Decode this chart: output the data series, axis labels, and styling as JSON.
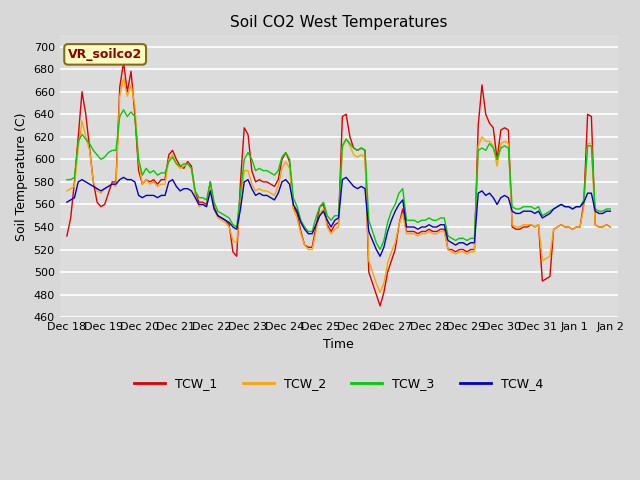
{
  "title": "Soil CO2 West Temperatures",
  "xlabel": "Time",
  "ylabel": "Soil Temperature (C)",
  "ylim": [
    460,
    710
  ],
  "yticks": [
    460,
    480,
    500,
    520,
    540,
    560,
    580,
    600,
    620,
    640,
    660,
    680,
    700
  ],
  "annotation_text": "VR_soilco2",
  "annotation_color": "#8B0000",
  "annotation_bg": "#FFFFC0",
  "colors": {
    "TCW_1": "#DD0000",
    "TCW_2": "#FFA500",
    "TCW_3": "#00CC00",
    "TCW_4": "#0000CC"
  },
  "bg_color": "#DCDCDC",
  "grid_color": "#FFFFFF",
  "fig_bg": "#D8D8D8",
  "tick_labels": [
    "Dec 18",
    "Dec 19",
    "Dec 20",
    "Dec 21",
    "Dec 22",
    "Dec 23",
    "Dec 24",
    "Dec 25",
    "Dec 26",
    "Dec 27",
    "Dec 28",
    "Dec 29",
    "Dec 30",
    "Dec 31",
    "Jan 1",
    "Jan 2"
  ],
  "TCW_1": [
    532,
    548,
    580,
    620,
    660,
    640,
    610,
    580,
    562,
    558,
    560,
    570,
    580,
    580,
    664,
    686,
    660,
    678,
    640,
    590,
    578,
    582,
    580,
    582,
    578,
    582,
    582,
    604,
    608,
    600,
    594,
    592,
    598,
    594,
    570,
    562,
    562,
    560,
    580,
    558,
    550,
    548,
    546,
    542,
    518,
    514,
    580,
    628,
    622,
    590,
    580,
    582,
    580,
    580,
    578,
    576,
    582,
    600,
    606,
    598,
    558,
    552,
    536,
    524,
    522,
    522,
    540,
    558,
    560,
    542,
    536,
    542,
    544,
    638,
    640,
    620,
    610,
    608,
    610,
    608,
    500,
    490,
    480,
    470,
    482,
    500,
    510,
    520,
    542,
    556,
    536,
    536,
    536,
    534,
    536,
    536,
    538,
    536,
    536,
    538,
    538,
    520,
    520,
    518,
    520,
    520,
    518,
    520,
    520,
    630,
    666,
    640,
    632,
    628,
    600,
    626,
    628,
    626,
    540,
    538,
    538,
    540,
    540,
    542,
    540,
    542,
    492,
    494,
    496,
    538,
    540,
    542,
    540,
    540,
    538,
    540,
    540,
    562,
    640,
    638,
    542,
    540,
    540,
    542,
    540
  ],
  "TCW_2": [
    572,
    574,
    576,
    610,
    634,
    620,
    608,
    580,
    572,
    570,
    574,
    576,
    578,
    576,
    656,
    672,
    656,
    666,
    648,
    598,
    578,
    582,
    578,
    580,
    576,
    578,
    578,
    600,
    604,
    596,
    592,
    594,
    596,
    592,
    568,
    558,
    560,
    558,
    576,
    556,
    548,
    546,
    544,
    540,
    528,
    526,
    562,
    590,
    590,
    578,
    572,
    574,
    572,
    572,
    570,
    568,
    576,
    592,
    598,
    592,
    556,
    548,
    534,
    524,
    520,
    520,
    536,
    552,
    556,
    540,
    534,
    538,
    540,
    610,
    618,
    612,
    604,
    602,
    604,
    602,
    510,
    500,
    490,
    482,
    490,
    508,
    518,
    526,
    542,
    552,
    534,
    534,
    534,
    532,
    534,
    534,
    536,
    534,
    534,
    536,
    536,
    520,
    518,
    516,
    518,
    518,
    516,
    518,
    518,
    612,
    620,
    616,
    616,
    612,
    594,
    614,
    616,
    614,
    542,
    540,
    540,
    542,
    542,
    542,
    540,
    542,
    510,
    512,
    514,
    538,
    540,
    542,
    540,
    540,
    538,
    540,
    540,
    558,
    614,
    614,
    542,
    540,
    540,
    542,
    540
  ],
  "TCW_3": [
    582,
    582,
    584,
    616,
    622,
    618,
    614,
    608,
    604,
    600,
    602,
    606,
    608,
    608,
    638,
    644,
    638,
    642,
    638,
    600,
    586,
    592,
    588,
    590,
    586,
    588,
    588,
    598,
    602,
    596,
    594,
    596,
    596,
    592,
    572,
    566,
    566,
    564,
    580,
    562,
    554,
    552,
    550,
    548,
    542,
    540,
    570,
    600,
    606,
    600,
    590,
    592,
    590,
    590,
    588,
    586,
    590,
    602,
    606,
    600,
    566,
    558,
    546,
    540,
    536,
    536,
    548,
    558,
    562,
    550,
    546,
    550,
    550,
    612,
    618,
    614,
    610,
    608,
    610,
    608,
    546,
    536,
    526,
    520,
    528,
    544,
    554,
    560,
    570,
    574,
    546,
    546,
    546,
    544,
    546,
    546,
    548,
    546,
    546,
    548,
    548,
    532,
    530,
    528,
    530,
    530,
    528,
    530,
    530,
    608,
    610,
    608,
    614,
    610,
    600,
    610,
    612,
    610,
    558,
    556,
    556,
    558,
    558,
    558,
    556,
    558,
    550,
    552,
    554,
    556,
    558,
    560,
    558,
    558,
    556,
    558,
    558,
    564,
    612,
    612,
    556,
    554,
    554,
    556,
    556
  ],
  "TCW_4": [
    562,
    564,
    566,
    580,
    582,
    580,
    578,
    576,
    574,
    572,
    574,
    576,
    578,
    578,
    582,
    584,
    582,
    582,
    580,
    568,
    566,
    568,
    568,
    568,
    566,
    568,
    568,
    580,
    582,
    576,
    572,
    574,
    574,
    572,
    566,
    560,
    560,
    558,
    572,
    556,
    550,
    548,
    546,
    544,
    540,
    538,
    556,
    580,
    582,
    574,
    568,
    570,
    568,
    568,
    566,
    564,
    570,
    580,
    582,
    578,
    560,
    554,
    544,
    538,
    534,
    534,
    542,
    550,
    554,
    546,
    540,
    546,
    548,
    582,
    584,
    580,
    576,
    574,
    576,
    574,
    536,
    528,
    520,
    514,
    522,
    536,
    546,
    554,
    560,
    564,
    540,
    540,
    540,
    538,
    540,
    540,
    542,
    540,
    540,
    542,
    542,
    528,
    526,
    524,
    526,
    526,
    524,
    526,
    526,
    570,
    572,
    568,
    570,
    566,
    560,
    566,
    568,
    566,
    554,
    552,
    552,
    554,
    554,
    554,
    552,
    554,
    548,
    550,
    552,
    556,
    558,
    560,
    558,
    558,
    556,
    558,
    558,
    562,
    570,
    570,
    554,
    552,
    552,
    554,
    554
  ],
  "n_points": 145,
  "legend_entries": [
    "TCW_1",
    "TCW_2",
    "TCW_3",
    "TCW_4"
  ]
}
